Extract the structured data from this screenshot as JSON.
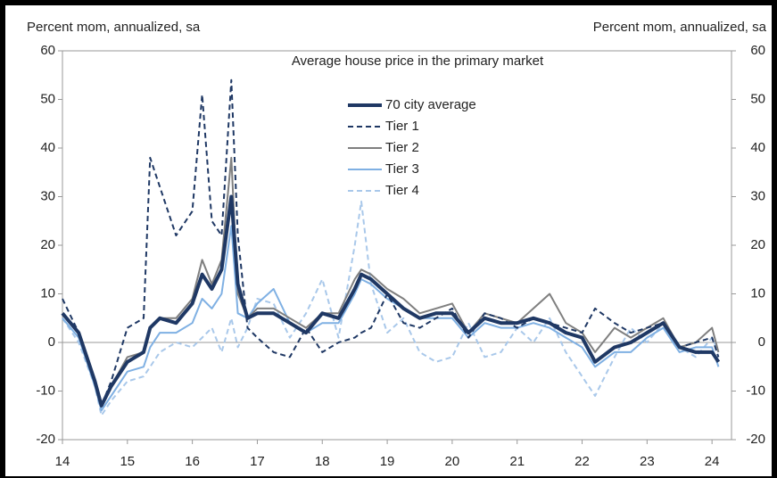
{
  "chart_data": {
    "type": "line",
    "title": "Average house price in the primary market",
    "ylabel": "Percent mom, annualized, sa",
    "y2label": "Percent mom, annualized, sa",
    "x": [
      14,
      14.25,
      14.5,
      14.6,
      14.75,
      15,
      15.25,
      15.35,
      15.5,
      15.75,
      16,
      16.15,
      16.3,
      16.45,
      16.6,
      16.7,
      16.85,
      17,
      17.25,
      17.5,
      17.75,
      18,
      18.25,
      18.5,
      18.6,
      18.75,
      19,
      19.25,
      19.5,
      19.75,
      20,
      20.25,
      20.5,
      20.75,
      21,
      21.25,
      21.5,
      21.75,
      22,
      22.2,
      22.5,
      22.75,
      23,
      23.25,
      23.5,
      23.75,
      24,
      24.1
    ],
    "xlim": [
      14,
      24.3
    ],
    "xticks": [
      14,
      15,
      16,
      17,
      18,
      19,
      20,
      21,
      22,
      23,
      24
    ],
    "ylim": [
      -20,
      60
    ],
    "yticks": [
      -20,
      -10,
      0,
      10,
      20,
      30,
      40,
      50,
      60
    ],
    "y2lim": [
      -20,
      60
    ],
    "y2ticks": [
      -20,
      -10,
      0,
      10,
      20,
      30,
      40,
      50,
      60
    ],
    "legend": "upper center",
    "series": [
      {
        "name": "70 city average",
        "color": "#1f3864",
        "dashed": false,
        "bold": true,
        "values": [
          6,
          2,
          -8,
          -13,
          -9,
          -4,
          -2,
          3,
          5,
          4,
          8,
          14,
          11,
          15,
          30,
          12,
          5,
          6,
          6,
          4,
          2,
          6,
          5,
          11,
          14,
          13,
          10,
          7,
          5,
          6,
          6,
          2,
          5,
          4,
          4,
          5,
          4,
          2,
          1,
          -4,
          -1,
          0,
          2,
          4,
          -1,
          -2,
          -2,
          -4
        ]
      },
      {
        "name": "Tier 1",
        "color": "#1f3864",
        "dashed": true,
        "bold": false,
        "values": [
          9,
          2,
          -8,
          -13,
          -8,
          3,
          5,
          38,
          32,
          22,
          27,
          51,
          25,
          22,
          54,
          22,
          3,
          1,
          -2,
          -3,
          3,
          -2,
          0,
          1,
          2,
          3,
          10,
          4,
          3,
          5,
          7,
          1,
          6,
          5,
          3,
          5,
          4,
          3,
          2,
          7,
          4,
          2,
          3,
          4,
          -1,
          0,
          1,
          -3
        ]
      },
      {
        "name": "Tier 2",
        "color": "#7f7f7f",
        "dashed": false,
        "bold": false,
        "values": [
          6,
          2,
          -8,
          -13,
          -9,
          -3,
          -2,
          3,
          5,
          5,
          9,
          17,
          12,
          17,
          38,
          10,
          5,
          7,
          7,
          5,
          3,
          6,
          6,
          13,
          15,
          14,
          11,
          9,
          6,
          7,
          8,
          2,
          6,
          5,
          4,
          7,
          10,
          4,
          2,
          -2,
          3,
          1,
          3,
          5,
          -1,
          0,
          3,
          -2
        ]
      },
      {
        "name": "Tier 3",
        "color": "#7fb0e3",
        "dashed": false,
        "bold": false,
        "values": [
          5,
          1,
          -9,
          -14,
          -11,
          -6,
          -5,
          -1,
          2,
          2,
          4,
          9,
          7,
          10,
          24,
          6,
          5,
          8,
          11,
          4,
          2,
          4,
          4,
          10,
          13,
          12,
          9,
          7,
          5,
          5,
          5,
          1,
          4,
          3,
          3,
          4,
          3,
          1,
          -1,
          -5,
          -2,
          -2,
          1,
          3,
          -2,
          -1,
          -1,
          -5
        ]
      },
      {
        "name": "Tier 4",
        "color": "#a9c8ea",
        "dashed": true,
        "bold": false,
        "values": [
          5,
          0,
          -9,
          -15,
          -12,
          -8,
          -7,
          -5,
          -2,
          0,
          -1,
          1,
          3,
          -2,
          5,
          -1,
          3,
          9,
          8,
          1,
          6,
          13,
          1,
          20,
          29,
          12,
          2,
          5,
          -2,
          -4,
          -3,
          4,
          -3,
          -2,
          3,
          0,
          5,
          -2,
          -7,
          -11,
          -3,
          3,
          0,
          4,
          -1,
          -3,
          1,
          -2
        ]
      }
    ]
  }
}
